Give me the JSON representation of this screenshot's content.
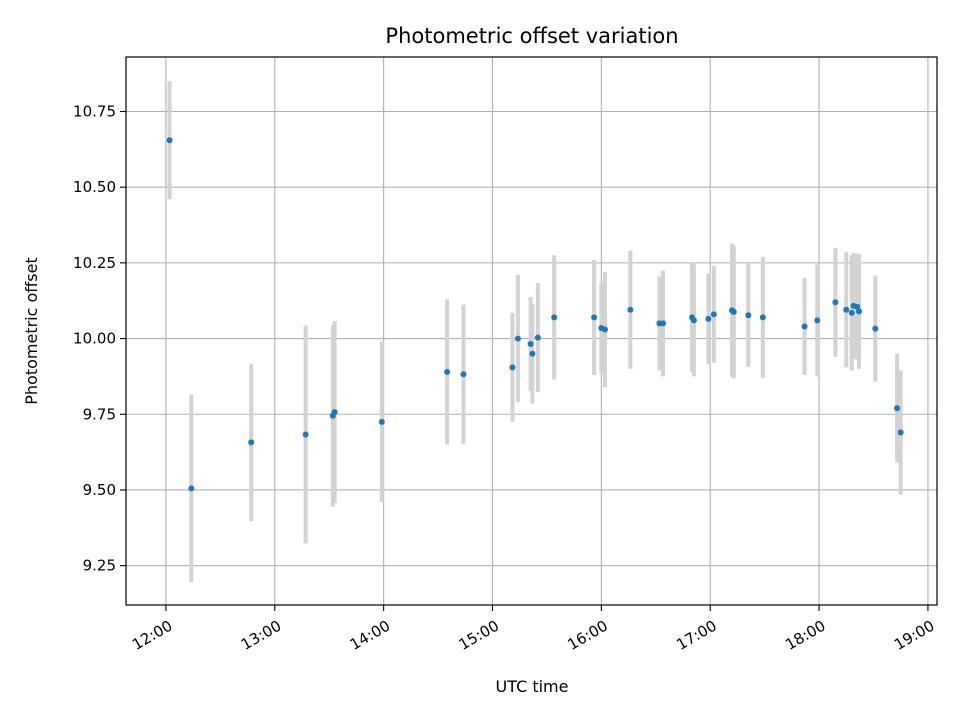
{
  "chart_data": {
    "type": "scatter",
    "title": "Photometric offset variation",
    "xlabel": "UTC time",
    "ylabel": "Photometric offset",
    "x_ticks": [
      "12:00",
      "13:00",
      "14:00",
      "15:00",
      "16:00",
      "17:00",
      "18:00",
      "19:00"
    ],
    "y_ticks": [
      "9.25",
      "9.50",
      "9.75",
      "10.00",
      "10.25",
      "10.50",
      "10.75"
    ],
    "xlim": [
      "11:38",
      "19:05"
    ],
    "ylim": [
      9.12,
      10.93
    ],
    "grid": true,
    "colors": {
      "point": "#1f77b4",
      "errorbar": "#d3d3d3",
      "grid": "#b0b0b0"
    },
    "points": [
      {
        "x": "12:02",
        "y": 10.655,
        "err": 0.195
      },
      {
        "x": "12:14",
        "y": 9.505,
        "err": 0.31
      },
      {
        "x": "12:47",
        "y": 9.657,
        "err": 0.26
      },
      {
        "x": "13:17",
        "y": 9.683,
        "err": 0.36
      },
      {
        "x": "13:32",
        "y": 9.745,
        "err": 0.3
      },
      {
        "x": "13:33",
        "y": 9.757,
        "err": 0.3
      },
      {
        "x": "13:59",
        "y": 9.725,
        "err": 0.265
      },
      {
        "x": "14:35",
        "y": 9.89,
        "err": 0.24
      },
      {
        "x": "14:44",
        "y": 9.882,
        "err": 0.23
      },
      {
        "x": "15:11",
        "y": 9.905,
        "err": 0.18
      },
      {
        "x": "15:14",
        "y": 10.0,
        "err": 0.21
      },
      {
        "x": "15:21",
        "y": 9.982,
        "err": 0.155
      },
      {
        "x": "15:22",
        "y": 9.95,
        "err": 0.165
      },
      {
        "x": "15:25",
        "y": 10.003,
        "err": 0.18
      },
      {
        "x": "15:34",
        "y": 10.07,
        "err": 0.205
      },
      {
        "x": "15:56",
        "y": 10.07,
        "err": 0.19
      },
      {
        "x": "16:00",
        "y": 10.035,
        "err": 0.15
      },
      {
        "x": "16:02",
        "y": 10.03,
        "err": 0.19
      },
      {
        "x": "16:16",
        "y": 10.095,
        "err": 0.195
      },
      {
        "x": "16:32",
        "y": 10.05,
        "err": 0.155
      },
      {
        "x": "16:34",
        "y": 10.05,
        "err": 0.175
      },
      {
        "x": "16:50",
        "y": 10.07,
        "err": 0.18
      },
      {
        "x": "16:51",
        "y": 10.06,
        "err": 0.185
      },
      {
        "x": "16:59",
        "y": 10.065,
        "err": 0.15
      },
      {
        "x": "17:02",
        "y": 10.08,
        "err": 0.16
      },
      {
        "x": "17:12",
        "y": 10.093,
        "err": 0.22
      },
      {
        "x": "17:13",
        "y": 10.088,
        "err": 0.22
      },
      {
        "x": "17:21",
        "y": 10.077,
        "err": 0.17
      },
      {
        "x": "17:29",
        "y": 10.07,
        "err": 0.2
      },
      {
        "x": "17:52",
        "y": 10.04,
        "err": 0.16
      },
      {
        "x": "17:59",
        "y": 10.06,
        "err": 0.185
      },
      {
        "x": "18:09",
        "y": 10.12,
        "err": 0.18
      },
      {
        "x": "18:15",
        "y": 10.095,
        "err": 0.19
      },
      {
        "x": "18:18",
        "y": 10.085,
        "err": 0.19
      },
      {
        "x": "18:19",
        "y": 10.108,
        "err": 0.175
      },
      {
        "x": "18:21",
        "y": 10.105,
        "err": 0.175
      },
      {
        "x": "18:22",
        "y": 10.09,
        "err": 0.19
      },
      {
        "x": "18:31",
        "y": 10.033,
        "err": 0.175
      },
      {
        "x": "18:43",
        "y": 9.77,
        "err": 0.18
      },
      {
        "x": "18:45",
        "y": 9.69,
        "err": 0.205
      }
    ]
  }
}
